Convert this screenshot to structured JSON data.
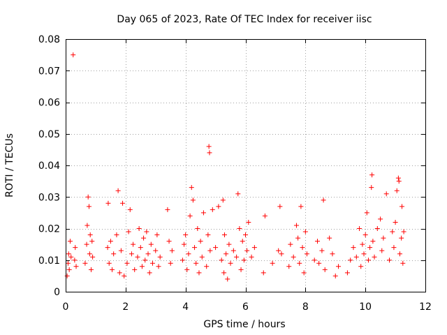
{
  "chart_data": {
    "type": "scatter",
    "title": "Day 065 of 2023, Rate Of TEC Index for receiver iisc",
    "xlabel": "GPS time / hours",
    "ylabel": "ROTI / TECUs",
    "xlim": [
      0,
      12
    ],
    "ylim": [
      0,
      0.08
    ],
    "x_ticks": [
      "0",
      "2",
      "4",
      "6",
      "8",
      "10",
      "12"
    ],
    "y_ticks": [
      "0",
      "0.01",
      "0.02",
      "0.03",
      "0.04",
      "0.05",
      "0.06",
      "0.07",
      "0.08"
    ],
    "grid": true,
    "marker": "+",
    "color": "#ff0000",
    "series": [
      {
        "points": [
          [
            0.05,
            0.005
          ],
          [
            0.08,
            0.009
          ],
          [
            0.1,
            0.012
          ],
          [
            0.12,
            0.007
          ],
          [
            0.15,
            0.016
          ],
          [
            0.18,
            0.011
          ],
          [
            0.25,
            0.075
          ],
          [
            0.3,
            0.01
          ],
          [
            0.32,
            0.014
          ],
          [
            0.35,
            0.008
          ],
          [
            0.65,
            0.009
          ],
          [
            0.7,
            0.015
          ],
          [
            0.72,
            0.021
          ],
          [
            0.75,
            0.03
          ],
          [
            0.78,
            0.027
          ],
          [
            0.8,
            0.012
          ],
          [
            0.82,
            0.018
          ],
          [
            0.85,
            0.007
          ],
          [
            0.88,
            0.016
          ],
          [
            0.9,
            0.011
          ],
          [
            1.4,
            0.014
          ],
          [
            1.42,
            0.028
          ],
          [
            1.45,
            0.009
          ],
          [
            1.5,
            0.016
          ],
          [
            1.55,
            0.007
          ],
          [
            1.6,
            0.012
          ],
          [
            1.7,
            0.018
          ],
          [
            1.75,
            0.032
          ],
          [
            1.8,
            0.006
          ],
          [
            1.85,
            0.013
          ],
          [
            1.9,
            0.028
          ],
          [
            1.95,
            0.005
          ],
          [
            2.05,
            0.009
          ],
          [
            2.1,
            0.019
          ],
          [
            2.15,
            0.026
          ],
          [
            2.2,
            0.012
          ],
          [
            2.25,
            0.015
          ],
          [
            2.3,
            0.007
          ],
          [
            2.4,
            0.011
          ],
          [
            2.45,
            0.02
          ],
          [
            2.5,
            0.014
          ],
          [
            2.55,
            0.008
          ],
          [
            2.6,
            0.017
          ],
          [
            2.65,
            0.01
          ],
          [
            2.7,
            0.019
          ],
          [
            2.75,
            0.012
          ],
          [
            2.8,
            0.006
          ],
          [
            2.85,
            0.015
          ],
          [
            2.9,
            0.009
          ],
          [
            3.0,
            0.013
          ],
          [
            3.05,
            0.018
          ],
          [
            3.1,
            0.008
          ],
          [
            3.15,
            0.011
          ],
          [
            3.4,
            0.026
          ],
          [
            3.45,
            0.016
          ],
          [
            3.5,
            0.009
          ],
          [
            3.55,
            0.013
          ],
          [
            3.9,
            0.01
          ],
          [
            3.95,
            0.015
          ],
          [
            4.0,
            0.018
          ],
          [
            4.05,
            0.007
          ],
          [
            4.1,
            0.012
          ],
          [
            4.15,
            0.024
          ],
          [
            4.2,
            0.033
          ],
          [
            4.25,
            0.029
          ],
          [
            4.3,
            0.014
          ],
          [
            4.35,
            0.009
          ],
          [
            4.4,
            0.02
          ],
          [
            4.45,
            0.006
          ],
          [
            4.5,
            0.016
          ],
          [
            4.55,
            0.011
          ],
          [
            4.6,
            0.025
          ],
          [
            4.7,
            0.008
          ],
          [
            4.75,
            0.018
          ],
          [
            4.78,
            0.046
          ],
          [
            4.8,
            0.044
          ],
          [
            4.82,
            0.013
          ],
          [
            4.9,
            0.026
          ],
          [
            5.0,
            0.014
          ],
          [
            5.1,
            0.027
          ],
          [
            5.2,
            0.01
          ],
          [
            5.25,
            0.029
          ],
          [
            5.28,
            0.006
          ],
          [
            5.3,
            0.018
          ],
          [
            5.35,
            0.012
          ],
          [
            5.4,
            0.004
          ],
          [
            5.45,
            0.015
          ],
          [
            5.5,
            0.009
          ],
          [
            5.6,
            0.013
          ],
          [
            5.7,
            0.011
          ],
          [
            5.75,
            0.031
          ],
          [
            5.8,
            0.02
          ],
          [
            5.85,
            0.007
          ],
          [
            5.9,
            0.016
          ],
          [
            5.95,
            0.01
          ],
          [
            6.0,
            0.018
          ],
          [
            6.05,
            0.013
          ],
          [
            6.1,
            0.022
          ],
          [
            6.2,
            0.011
          ],
          [
            6.3,
            0.014
          ],
          [
            6.6,
            0.006
          ],
          [
            6.65,
            0.024
          ],
          [
            6.9,
            0.009
          ],
          [
            7.1,
            0.013
          ],
          [
            7.15,
            0.027
          ],
          [
            7.2,
            0.012
          ],
          [
            7.45,
            0.008
          ],
          [
            7.5,
            0.015
          ],
          [
            7.6,
            0.011
          ],
          [
            7.7,
            0.021
          ],
          [
            7.75,
            0.017
          ],
          [
            7.8,
            0.009
          ],
          [
            7.85,
            0.027
          ],
          [
            7.9,
            0.014
          ],
          [
            7.95,
            0.006
          ],
          [
            8.0,
            0.019
          ],
          [
            8.05,
            0.012
          ],
          [
            8.3,
            0.01
          ],
          [
            8.4,
            0.016
          ],
          [
            8.45,
            0.009
          ],
          [
            8.55,
            0.013
          ],
          [
            8.6,
            0.029
          ],
          [
            8.65,
            0.007
          ],
          [
            8.8,
            0.017
          ],
          [
            8.9,
            0.012
          ],
          [
            9.0,
            0.005
          ],
          [
            9.1,
            0.008
          ],
          [
            9.4,
            0.006
          ],
          [
            9.5,
            0.01
          ],
          [
            9.6,
            0.014
          ],
          [
            9.7,
            0.011
          ],
          [
            9.8,
            0.02
          ],
          [
            9.85,
            0.008
          ],
          [
            9.9,
            0.015
          ],
          [
            9.95,
            0.012
          ],
          [
            10.0,
            0.018
          ],
          [
            10.05,
            0.025
          ],
          [
            10.1,
            0.01
          ],
          [
            10.15,
            0.014
          ],
          [
            10.2,
            0.033
          ],
          [
            10.22,
            0.037
          ],
          [
            10.25,
            0.016
          ],
          [
            10.3,
            0.011
          ],
          [
            10.4,
            0.02
          ],
          [
            10.5,
            0.023
          ],
          [
            10.55,
            0.013
          ],
          [
            10.6,
            0.017
          ],
          [
            10.7,
            0.031
          ],
          [
            10.8,
            0.01
          ],
          [
            10.9,
            0.019
          ],
          [
            10.95,
            0.014
          ],
          [
            11.0,
            0.022
          ],
          [
            11.05,
            0.032
          ],
          [
            11.1,
            0.036
          ],
          [
            11.12,
            0.035
          ],
          [
            11.15,
            0.012
          ],
          [
            11.2,
            0.017
          ],
          [
            11.22,
            0.027
          ],
          [
            11.25,
            0.009
          ],
          [
            11.28,
            0.019
          ]
        ]
      }
    ]
  }
}
